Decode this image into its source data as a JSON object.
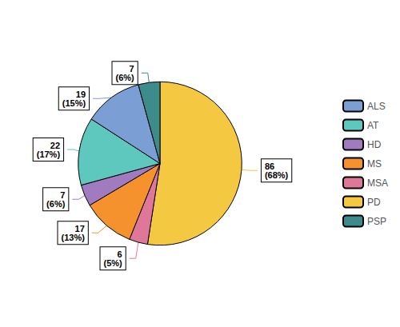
{
  "chart_data": {
    "type": "pie",
    "categories": [
      "PD",
      "MSA",
      "MS",
      "HD",
      "AT",
      "ALS",
      "PSP"
    ],
    "values": [
      86,
      6,
      17,
      7,
      22,
      19,
      7
    ],
    "value_labels": [
      "86\n(68%)",
      "6\n(5%)",
      "17\n(13%)",
      "7\n(6%)",
      "22\n(17%)",
      "19\n(15%)",
      "7\n(6%)"
    ],
    "colors": [
      "#f5c842",
      "#df7898",
      "#f5922e",
      "#a07bc0",
      "#5ec8be",
      "#7b9fd4",
      "#3d8b8b"
    ],
    "data_labels": true,
    "legend": "right"
  }
}
